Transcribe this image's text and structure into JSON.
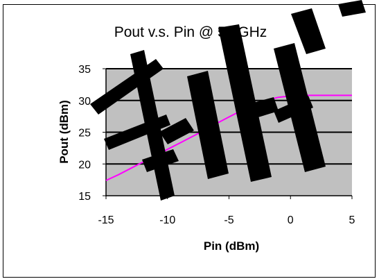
{
  "chart_data": {
    "type": "line",
    "title": "Pout v.s. Pin @ 5.4GHz",
    "xlabel": "Pin (dBm)",
    "ylabel": "Pout (dBm)",
    "xlim": [
      -15,
      5
    ],
    "ylim": [
      15,
      35
    ],
    "x_ticks": [
      -15,
      -10,
      -5,
      0,
      5
    ],
    "y_ticks": [
      15,
      20,
      25,
      30,
      35
    ],
    "x_tick_labels": [
      "-15",
      "-10",
      "-5",
      "0",
      "5"
    ],
    "y_tick_labels": [
      "15",
      "20",
      "25",
      "30",
      "35"
    ],
    "grid": "horizontal",
    "legend": "none",
    "series": [
      {
        "color": "#ff00ff",
        "x": [
          -15,
          -14,
          -13,
          -12,
          -11,
          -10,
          -9,
          -8,
          -7,
          -6,
          -5,
          -4,
          -3,
          -2,
          -1,
          0,
          1,
          2,
          3,
          4,
          5
        ],
        "y": [
          17.4,
          18.3,
          19.3,
          20.3,
          21.3,
          22.3,
          23.3,
          24.3,
          25.3,
          26.4,
          27.4,
          28.4,
          29.3,
          30.0,
          30.5,
          30.7,
          30.8,
          30.8,
          30.8,
          30.8,
          30.8
        ]
      }
    ]
  },
  "colors": {
    "plot_background": "#c0c0c0",
    "gridline": "#000000",
    "series_line": "#ff00ff",
    "watermark": "#000000"
  }
}
